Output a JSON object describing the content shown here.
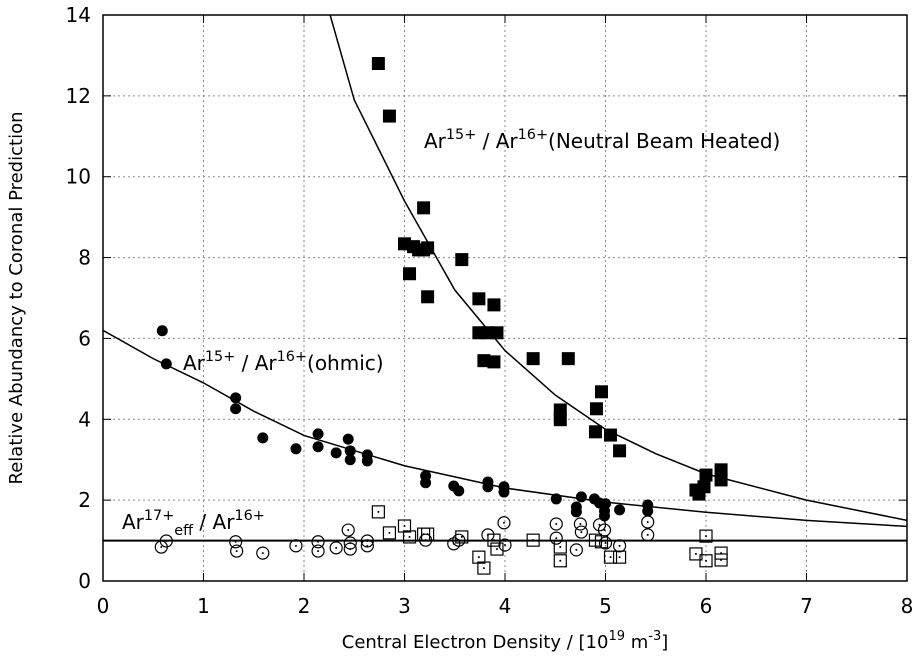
{
  "chart_data": {
    "type": "scatter",
    "xlabel": [
      "Central Electron Density / [10",
      "19",
      " m",
      "-3",
      "]"
    ],
    "ylabel": "Relative Abundancy to Coronal Prediction",
    "xlim": [
      0,
      8
    ],
    "ylim": [
      0,
      14
    ],
    "xticks": [
      0,
      1,
      2,
      3,
      4,
      5,
      6,
      7,
      8
    ],
    "yticks": [
      0,
      2,
      4,
      6,
      8,
      10,
      12,
      14
    ],
    "grid": true,
    "annotations": [
      {
        "parts": [
          {
            "text": "Ar"
          },
          {
            "text": "15+",
            "shift": "sup"
          },
          {
            "text": " / Ar"
          },
          {
            "text": "16+",
            "shift": "sup"
          },
          {
            "text": "(Neutral Beam Heated)"
          }
        ]
      },
      {
        "parts": [
          {
            "text": "Ar"
          },
          {
            "text": "15+",
            "shift": "sup"
          },
          {
            "text": " / Ar"
          },
          {
            "text": "16+",
            "shift": "sup"
          },
          {
            "text": "(ohmic)"
          }
        ]
      },
      {
        "parts": [
          {
            "text": "Ar"
          },
          {
            "text": "17+",
            "shift": "sup"
          },
          {
            "text": "eff",
            "shift": "sub"
          },
          {
            "text": " / Ar"
          },
          {
            "text": "16+",
            "shift": "sup"
          }
        ]
      }
    ],
    "series": [
      {
        "marker": "square-filled",
        "color": "#000000",
        "x": [
          2.74,
          2.85,
          3.19,
          3.0,
          3.09,
          3.14,
          3.19,
          3.23,
          3.05,
          3.23,
          3.57,
          3.74,
          3.89,
          3.74,
          3.82,
          3.92,
          3.79,
          3.89,
          4.28,
          4.63,
          4.55,
          4.55,
          4.96,
          4.91,
          4.9,
          5.05,
          5.14,
          5.9,
          5.93,
          5.98,
          6.0,
          6.15,
          6.15
        ],
        "y": [
          12.8,
          11.5,
          9.23,
          8.34,
          8.27,
          8.19,
          8.19,
          8.24,
          7.6,
          7.03,
          7.95,
          6.98,
          6.83,
          6.14,
          6.14,
          6.14,
          5.45,
          5.42,
          5.5,
          5.5,
          4.23,
          3.99,
          4.68,
          4.26,
          3.69,
          3.61,
          3.22,
          2.25,
          2.15,
          2.33,
          2.62,
          2.75,
          2.5
        ]
      },
      {
        "marker": "circle-filled",
        "color": "#000000",
        "x": [
          0.59,
          0.63,
          1.32,
          1.32,
          1.59,
          1.92,
          2.14,
          2.14,
          2.32,
          2.44,
          2.46,
          2.46,
          2.63,
          2.63,
          3.21,
          3.21,
          3.49,
          3.54,
          3.83,
          3.83,
          3.99,
          3.99,
          4.51,
          4.76,
          4.71,
          4.71,
          4.89,
          4.94,
          5.0,
          4.99,
          4.99,
          5.14,
          5.42,
          5.42
        ],
        "y": [
          6.19,
          5.37,
          4.53,
          4.26,
          3.54,
          3.27,
          3.64,
          3.32,
          3.17,
          3.51,
          3.22,
          3.0,
          3.12,
          2.97,
          2.6,
          2.43,
          2.35,
          2.23,
          2.45,
          2.33,
          2.33,
          2.2,
          2.03,
          2.08,
          1.83,
          1.71,
          2.03,
          1.93,
          1.91,
          1.73,
          1.61,
          1.76,
          1.88,
          1.73
        ]
      },
      {
        "marker": "circle-open",
        "color": "#000000",
        "x": [
          0.58,
          0.63,
          1.32,
          1.33,
          1.59,
          1.92,
          2.14,
          2.14,
          2.32,
          2.44,
          2.46,
          2.46,
          2.63,
          2.63,
          3.21,
          3.49,
          3.54,
          3.83,
          3.99,
          4.0,
          4.51,
          4.51,
          4.71,
          4.75,
          4.76,
          4.94,
          4.99,
          5.0,
          5.14,
          5.42,
          5.42
        ],
        "y": [
          0.84,
          0.99,
          0.97,
          0.74,
          0.69,
          0.87,
          0.97,
          0.74,
          0.82,
          1.26,
          0.94,
          0.79,
          0.99,
          0.87,
          1.01,
          0.92,
          1.01,
          1.14,
          1.44,
          0.89,
          1.41,
          1.06,
          0.77,
          1.41,
          1.21,
          1.39,
          1.26,
          0.94,
          0.87,
          1.46,
          1.14
        ]
      },
      {
        "marker": "square-open",
        "color": "#000000",
        "x": [
          2.74,
          2.85,
          3.0,
          3.05,
          3.19,
          3.23,
          3.57,
          3.74,
          3.79,
          3.89,
          3.92,
          4.28,
          4.55,
          4.55,
          4.9,
          4.96,
          5.05,
          5.14,
          5.9,
          6.0,
          6.0,
          6.15,
          6.15
        ],
        "y": [
          1.71,
          1.19,
          1.36,
          1.09,
          1.16,
          1.16,
          1.09,
          0.59,
          0.32,
          1.01,
          0.79,
          1.01,
          0.5,
          0.84,
          1.01,
          0.97,
          0.59,
          0.59,
          0.67,
          0.5,
          1.11,
          0.69,
          0.52
        ]
      },
      {
        "marker": "none",
        "line": true,
        "color": "#000000",
        "x": [
          2.26,
          2.5,
          3,
          3.5,
          4,
          4.5,
          5,
          5.5,
          6,
          7,
          8
        ],
        "y": [
          14,
          11.9,
          9.4,
          7.2,
          5.7,
          4.6,
          3.75,
          3.15,
          2.65,
          2.0,
          1.5
        ]
      },
      {
        "marker": "none",
        "line": true,
        "color": "#000000",
        "x": [
          0,
          0.5,
          1,
          1.5,
          2,
          3,
          4,
          5,
          6,
          7,
          8
        ],
        "y": [
          6.2,
          5.5,
          4.9,
          4.2,
          3.6,
          2.85,
          2.3,
          1.95,
          1.7,
          1.5,
          1.35
        ]
      },
      {
        "marker": "none",
        "line": true,
        "color": "#000000",
        "width": 2,
        "x": [
          0,
          8
        ],
        "y": [
          1,
          1
        ]
      }
    ]
  }
}
